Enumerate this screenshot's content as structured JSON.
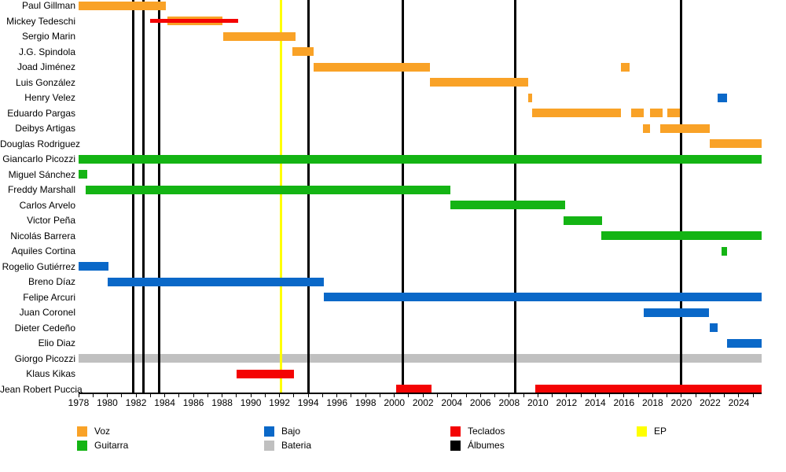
{
  "chart_data": {
    "type": "timeline",
    "x_axis": {
      "start": 1978,
      "end": 2025.6,
      "tick_every_years": 1,
      "year_labels": [
        "1978",
        "1980",
        "1982",
        "1984",
        "1986",
        "1988",
        "1990",
        "1992",
        "1994",
        "1996",
        "1998",
        "2000",
        "2002",
        "2004",
        "2006",
        "2008",
        "2010",
        "2012",
        "2014",
        "2016",
        "2018",
        "2020",
        "2022",
        "2024"
      ]
    },
    "colors": {
      "voz": "#F9A227",
      "guitarra": "#14B414",
      "bajo": "#0A68C8",
      "bateria": "#C0C0C0",
      "teclados": "#F40404",
      "albumes": "#000000",
      "ep": "#FFFF00"
    },
    "members": [
      {
        "name": "Paul Gillman",
        "periods": [
          {
            "role": "voz",
            "from": 1978.0,
            "till": 1984.1
          }
        ]
      },
      {
        "name": "Mickey Tedeschi",
        "periods": [
          {
            "role": "voz",
            "from": 1984.2,
            "till": 1988.0
          },
          {
            "role": "teclados",
            "from": 1983.0,
            "till": 1989.1,
            "secondary": true
          }
        ]
      },
      {
        "name": "Sergio Marin",
        "periods": [
          {
            "role": "voz",
            "from": 1988.1,
            "till": 1993.1
          }
        ]
      },
      {
        "name": "J.G. Spindola",
        "periods": [
          {
            "role": "voz",
            "from": 1992.9,
            "till": 1994.4
          }
        ]
      },
      {
        "name": "Joad Jiménez",
        "periods": [
          {
            "role": "voz",
            "from": 1994.4,
            "till": 2002.5
          },
          {
            "role": "voz",
            "from": 2015.8,
            "till": 2016.4
          }
        ]
      },
      {
        "name": "Luis González",
        "periods": [
          {
            "role": "voz",
            "from": 2002.5,
            "till": 2009.3
          }
        ]
      },
      {
        "name": "Henry Velez",
        "periods": [
          {
            "role": "voz",
            "from": 2009.3,
            "till": 2009.6
          },
          {
            "role": "bajo",
            "from": 2022.5,
            "till": 2023.2
          }
        ]
      },
      {
        "name": "Eduardo Pargas",
        "periods": [
          {
            "role": "voz",
            "from": 2009.6,
            "till": 2015.8
          },
          {
            "role": "voz",
            "from": 2016.5,
            "till": 2017.4
          },
          {
            "role": "voz",
            "from": 2017.8,
            "till": 2018.7
          },
          {
            "role": "voz",
            "from": 2019.0,
            "till": 2019.9
          }
        ]
      },
      {
        "name": "Deibys Artigas",
        "periods": [
          {
            "role": "voz",
            "from": 2017.3,
            "till": 2017.8
          },
          {
            "role": "voz",
            "from": 2018.5,
            "till": 2022.0
          }
        ]
      },
      {
        "name": "Douglas Rodriguez",
        "periods": [
          {
            "role": "voz",
            "from": 2022.0,
            "till": 2025.6
          }
        ]
      },
      {
        "name": "Giancarlo Picozzi",
        "periods": [
          {
            "role": "guitarra",
            "from": 1978.0,
            "till": 2025.6
          }
        ]
      },
      {
        "name": "Miguel Sánchez",
        "periods": [
          {
            "role": "guitarra",
            "from": 1978.0,
            "till": 1978.6
          }
        ]
      },
      {
        "name": "Freddy Marshall",
        "periods": [
          {
            "role": "guitarra",
            "from": 1978.5,
            "till": 2003.9
          }
        ]
      },
      {
        "name": "Carlos Arvelo",
        "periods": [
          {
            "role": "guitarra",
            "from": 2003.9,
            "till": 2011.9
          }
        ]
      },
      {
        "name": "Victor Peña",
        "periods": [
          {
            "role": "guitarra",
            "from": 2011.8,
            "till": 2014.5
          }
        ]
      },
      {
        "name": "Nicolás Barrera",
        "periods": [
          {
            "role": "guitarra",
            "from": 2014.4,
            "till": 2025.6
          }
        ]
      },
      {
        "name": "Aquiles Cortina",
        "periods": [
          {
            "role": "guitarra",
            "from": 2022.8,
            "till": 2023.2
          }
        ]
      },
      {
        "name": "Rogelio Gutiérrez",
        "periods": [
          {
            "role": "bajo",
            "from": 1978.0,
            "till": 1980.1
          }
        ]
      },
      {
        "name": "Breno Díaz",
        "periods": [
          {
            "role": "bajo",
            "from": 1980.0,
            "till": 1995.1
          }
        ]
      },
      {
        "name": "Felipe Arcuri",
        "periods": [
          {
            "role": "bajo",
            "from": 1995.1,
            "till": 2025.6
          }
        ]
      },
      {
        "name": "Juan Coronel",
        "periods": [
          {
            "role": "bajo",
            "from": 2017.4,
            "till": 2021.9
          }
        ]
      },
      {
        "name": "Dieter Cedeño",
        "periods": [
          {
            "role": "bajo",
            "from": 2022.0,
            "till": 2022.5
          }
        ]
      },
      {
        "name": "Elio Diaz",
        "periods": [
          {
            "role": "bajo",
            "from": 2023.2,
            "till": 2025.6
          }
        ]
      },
      {
        "name": "Giorgo Picozzi",
        "periods": [
          {
            "role": "bateria",
            "from": 1978.0,
            "till": 2025.6
          }
        ]
      },
      {
        "name": "Klaus Kikas",
        "periods": [
          {
            "role": "teclados",
            "from": 1989.0,
            "till": 1993.0
          }
        ]
      },
      {
        "name": "Jean Robert Puccia",
        "periods": [
          {
            "role": "teclados",
            "from": 2000.1,
            "till": 2002.6
          },
          {
            "role": "teclados",
            "from": 2009.8,
            "till": 2025.6
          }
        ]
      }
    ],
    "album_years": [
      1981.8,
      1982.5,
      1983.6,
      1994.0,
      2000.6,
      2008.4,
      2020.0
    ],
    "ep_years": [
      1992.1
    ],
    "legend": [
      {
        "label": "Voz",
        "color_key": "voz"
      },
      {
        "label": "Guitarra",
        "color_key": "guitarra"
      },
      {
        "label": "Bajo",
        "color_key": "bajo"
      },
      {
        "label": "Bateria",
        "color_key": "bateria"
      },
      {
        "label": "Teclados",
        "color_key": "teclados"
      },
      {
        "label": "Álbumes",
        "color_key": "albumes"
      },
      {
        "label": "EP",
        "color_key": "ep"
      }
    ]
  }
}
